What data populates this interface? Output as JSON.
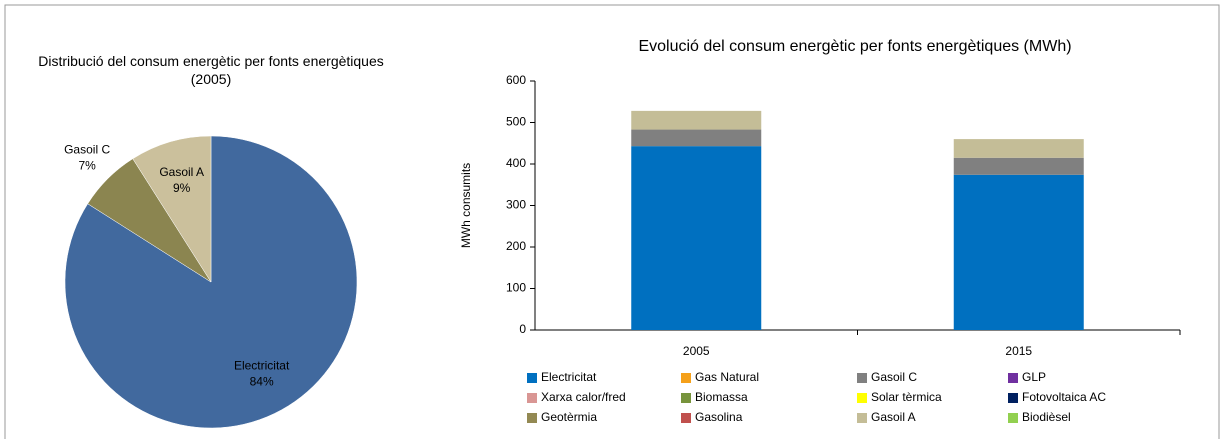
{
  "chart_data": [
    {
      "type": "pie",
      "title": "Distribució del consum energètic per fonts energètiques (2005)",
      "categories": [
        "Electricitat",
        "Gasoil C",
        "Gasoil A"
      ],
      "values": [
        84,
        7,
        9
      ],
      "value_labels": [
        "84%",
        "7%",
        "9%"
      ],
      "colors": [
        "#41699e",
        "#8b8550",
        "#cbc09c"
      ]
    },
    {
      "type": "bar",
      "stacked": true,
      "title": "Evolució del consum energètic per fonts energètiques (MWh)",
      "ylabel": "MWh consumits",
      "categories": [
        "2005",
        "2015"
      ],
      "series": [
        {
          "name": "Electricitat",
          "color": "#0070c0",
          "values": [
            443,
            374
          ]
        },
        {
          "name": "Gas Natural",
          "color": "#f5a01a",
          "values": [
            0,
            0
          ]
        },
        {
          "name": "Gasoil C",
          "color": "#808080",
          "values": [
            40,
            41
          ]
        },
        {
          "name": "GLP",
          "color": "#7030a0",
          "values": [
            0,
            0
          ]
        },
        {
          "name": "Xarxa calor/fred",
          "color": "#d99694",
          "values": [
            0,
            0
          ]
        },
        {
          "name": "Biomassa",
          "color": "#77933c",
          "values": [
            0,
            0
          ]
        },
        {
          "name": "Solar tèrmica",
          "color": "#ffff00",
          "values": [
            0,
            0
          ]
        },
        {
          "name": "Fotovoltaica AC",
          "color": "#002060",
          "values": [
            0,
            0
          ]
        },
        {
          "name": "Geotèrmia",
          "color": "#938953",
          "values": [
            0,
            0
          ]
        },
        {
          "name": "Gasolina",
          "color": "#c0504d",
          "values": [
            0,
            0
          ]
        },
        {
          "name": "Gasoil A",
          "color": "#c4bd97",
          "values": [
            45,
            45
          ]
        },
        {
          "name": "Biodièsel",
          "color": "#92d050",
          "values": [
            0,
            0
          ]
        }
      ],
      "ylim": [
        0,
        600
      ],
      "yticks": [
        0,
        100,
        200,
        300,
        400,
        500,
        600
      ],
      "legend": "bottom"
    }
  ]
}
